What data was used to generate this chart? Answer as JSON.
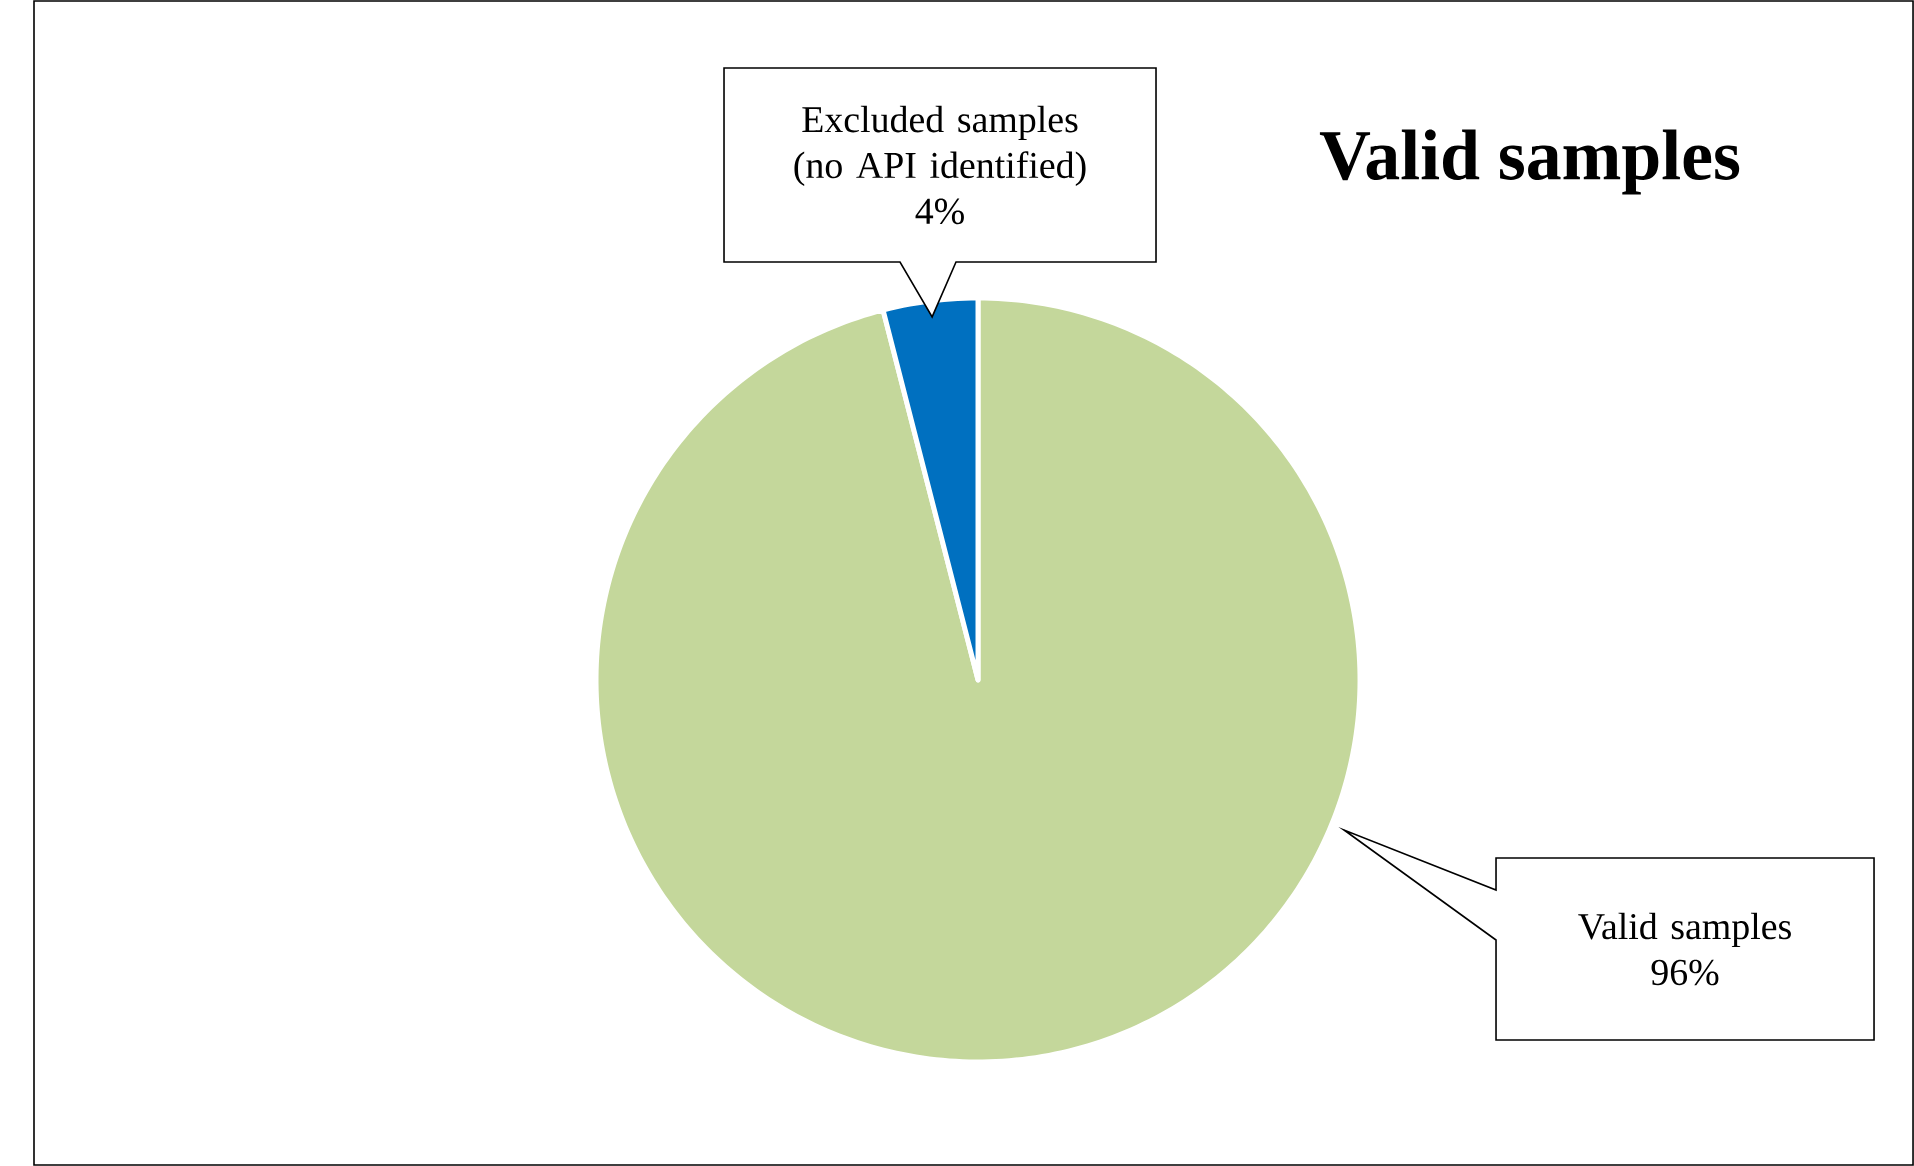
{
  "chart_data": {
    "type": "pie",
    "title": "Valid samples",
    "categories": [
      "Valid samples",
      "Excluded samples (no API identified)"
    ],
    "values": [
      96,
      4
    ],
    "value_labels": [
      "96%",
      "4%"
    ],
    "colors": [
      "#c4d79b",
      "#0070c0"
    ]
  }
}
